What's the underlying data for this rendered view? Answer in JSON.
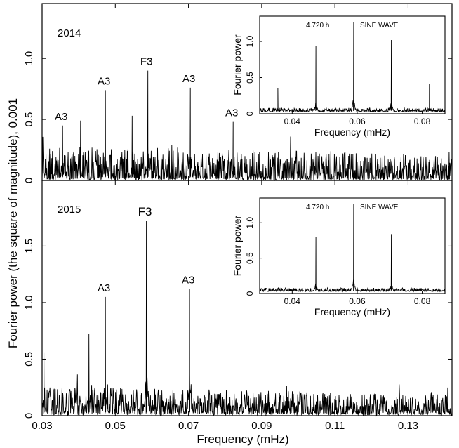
{
  "figure": {
    "ylabel": "Fourier power (the square of magnitude), 0.001",
    "xlabel": "Frequency (mHz)"
  },
  "chart_data": [
    {
      "id": "panel-2014",
      "type": "line",
      "panel_label": "2014",
      "xlim": [
        0.03,
        0.142
      ],
      "ylim": [
        0,
        1.45
      ],
      "x_ticks": [
        0.03,
        0.05,
        0.07,
        0.09,
        0.11,
        0.13
      ],
      "y_ticks": [
        0,
        0.5,
        1.0
      ],
      "y_tick_labels": [
        "0",
        "0.5",
        "1.0"
      ],
      "show_x_tick_labels": false,
      "noise": {
        "base": 0.13,
        "decay": 0.25,
        "floor": 0.02,
        "spread": 0.62
      },
      "peaks": [
        {
          "x": 0.0356,
          "y": 0.45,
          "label": "A3"
        },
        {
          "x": 0.0405,
          "y": 0.49,
          "label": ""
        },
        {
          "x": 0.0473,
          "y": 0.74,
          "label": "A3"
        },
        {
          "x": 0.0546,
          "y": 0.53,
          "label": ""
        },
        {
          "x": 0.0589,
          "y": 0.9,
          "label": "F3"
        },
        {
          "x": 0.0705,
          "y": 0.76,
          "label": "A3"
        },
        {
          "x": 0.0822,
          "y": 0.48,
          "label": "A3"
        }
      ]
    },
    {
      "id": "panel-2015",
      "type": "line",
      "panel_label": "2015",
      "xlim": [
        0.03,
        0.142
      ],
      "ylim": [
        0,
        2.08
      ],
      "x_ticks": [
        0.03,
        0.05,
        0.07,
        0.09,
        0.11,
        0.13
      ],
      "x_tick_labels": [
        "0.03",
        "0.05",
        "0.07",
        "0.09",
        "0.11",
        "0.13"
      ],
      "y_ticks": [
        0,
        0.5,
        1.0,
        1.5
      ],
      "y_tick_labels": [
        "0",
        "0.5",
        "1.0",
        "1.5"
      ],
      "show_x_tick_labels": true,
      "noise": {
        "base": 0.12,
        "decay": 0.3,
        "floor": 0.03,
        "spread": 0.55
      },
      "peaks": [
        {
          "x": 0.0305,
          "y": 0.56,
          "label": ""
        },
        {
          "x": 0.0428,
          "y": 0.72,
          "label": ""
        },
        {
          "x": 0.0473,
          "y": 1.05,
          "label": "A3"
        },
        {
          "x": 0.0585,
          "y": 1.72,
          "label": "F3"
        },
        {
          "x": 0.0703,
          "y": 1.12,
          "label": "A3"
        }
      ]
    }
  ],
  "insets": [
    {
      "id": "inset-2014",
      "text_left": "4.720 h",
      "text_right": "SINE  WAVE",
      "xlabel": "Frequency (mHz)",
      "ylabel": "Fourier power",
      "xlim": [
        0.03,
        0.087
      ],
      "ylim": [
        0,
        1.35
      ],
      "x_ticks": [
        0.04,
        0.06,
        0.08
      ],
      "x_tick_labels": [
        "0.04",
        "0.06",
        "0.08"
      ],
      "y_ticks": [
        0,
        0.5,
        1.0
      ],
      "y_tick_labels": [
        "0",
        "0.5",
        "1.0"
      ],
      "peaks": [
        {
          "x": 0.0356,
          "y": 0.35
        },
        {
          "x": 0.0473,
          "y": 0.94
        },
        {
          "x": 0.0589,
          "y": 1.27
        },
        {
          "x": 0.0705,
          "y": 1.02
        },
        {
          "x": 0.0822,
          "y": 0.41
        }
      ]
    },
    {
      "id": "inset-2015",
      "text_left": "4.720 h",
      "text_right": "SINE WAVE",
      "xlabel": "Frequency (mHz)",
      "ylabel": "Fourier power",
      "xlim": [
        0.03,
        0.087
      ],
      "ylim": [
        0,
        1.35
      ],
      "x_ticks": [
        0.04,
        0.06,
        0.08
      ],
      "x_tick_labels": [
        "0.04",
        "0.06",
        "0.08"
      ],
      "y_ticks": [
        0,
        0.5,
        1.0
      ],
      "y_tick_labels": [
        "0",
        "0.5",
        "1.0"
      ],
      "peaks": [
        {
          "x": 0.0473,
          "y": 0.8
        },
        {
          "x": 0.0589,
          "y": 1.27
        },
        {
          "x": 0.0705,
          "y": 0.84
        }
      ]
    }
  ]
}
